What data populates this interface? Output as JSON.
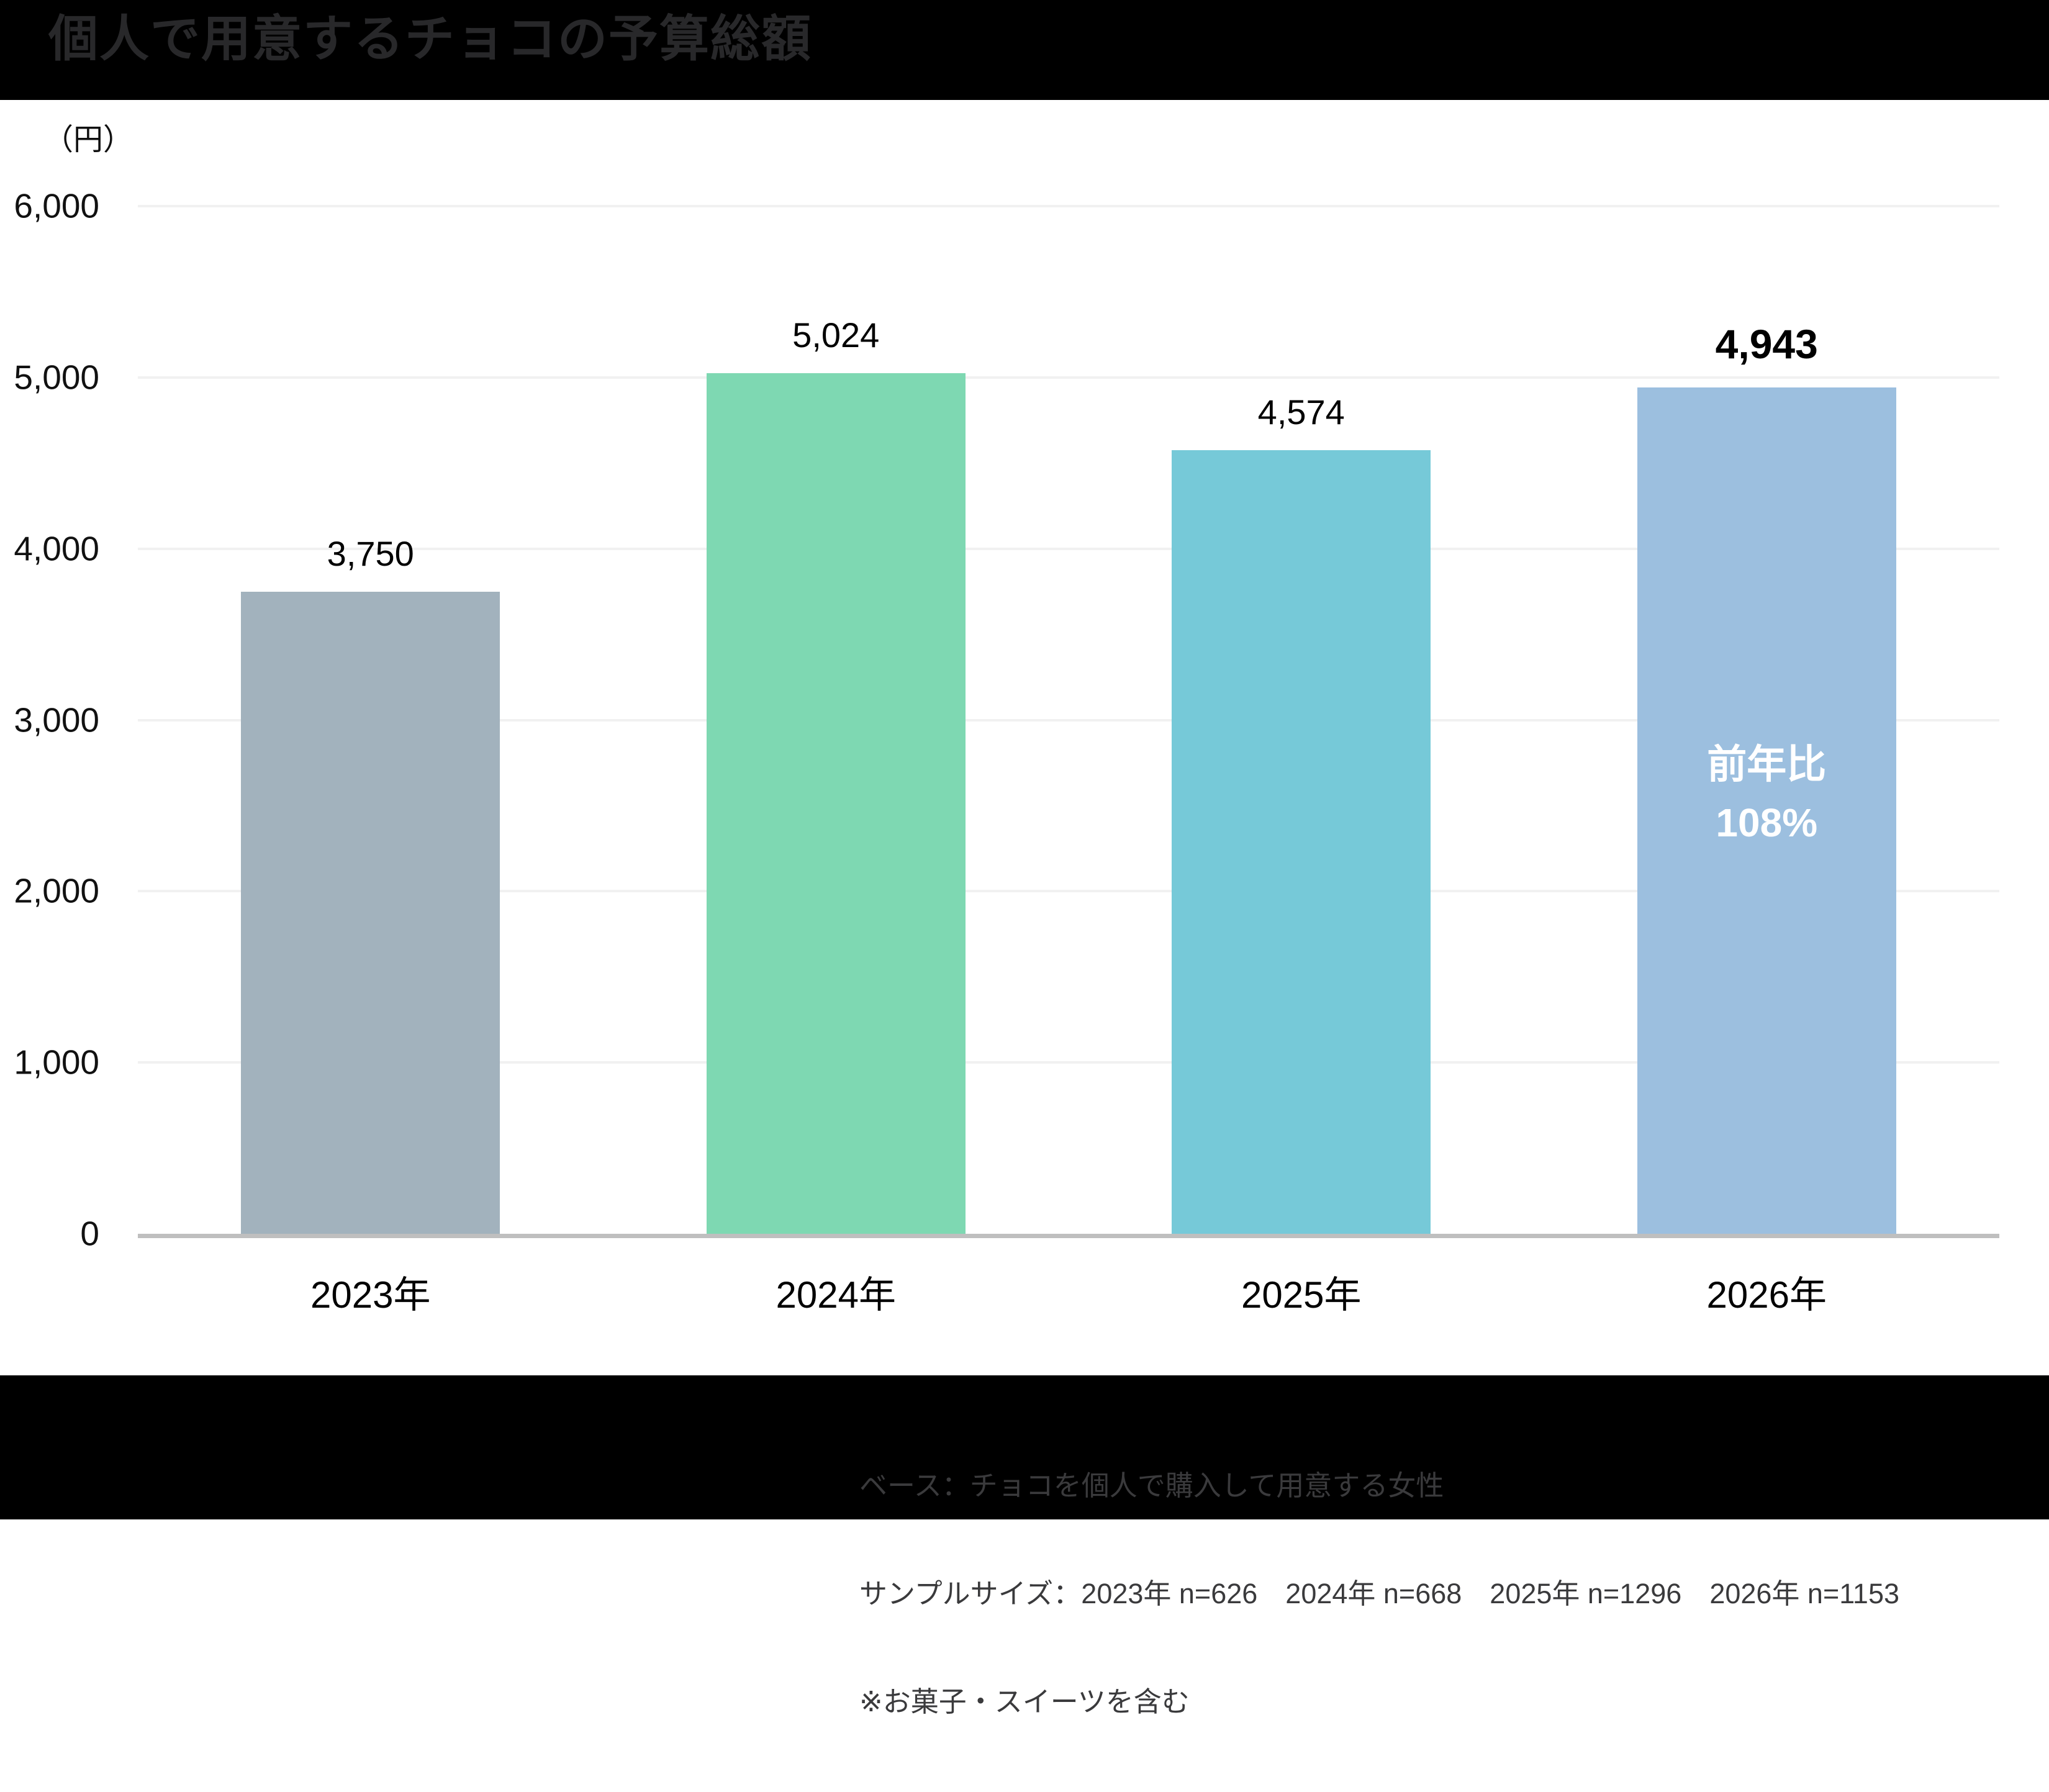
{
  "header": {
    "title": "個人で用意するチョコの予算総額"
  },
  "chart_data": {
    "type": "bar",
    "title": "個人で用意するチョコの予算総額",
    "unit_label": "（円）",
    "categories": [
      "2023年",
      "2024年",
      "2025年",
      "2026年"
    ],
    "values": [
      3750,
      5024,
      4574,
      4943
    ],
    "value_labels": [
      "3,750",
      "5,024",
      "4,574",
      "4,943"
    ],
    "bar_colors": [
      "#a2b2bd",
      "#7ed8b2",
      "#76c9d8",
      "#9cbfdf"
    ],
    "emphasized_index": 3,
    "annotation": {
      "bar_index": 3,
      "lines": [
        "前年比",
        "108%"
      ],
      "color": "#ffffff"
    },
    "xlabel": "",
    "ylabel": "（円）",
    "ylim": [
      0,
      6000
    ],
    "yticks": [
      0,
      1000,
      2000,
      3000,
      4000,
      5000,
      6000
    ],
    "ytick_labels": [
      "0",
      "1,000",
      "2,000",
      "3,000",
      "4,000",
      "5,000",
      "6,000"
    ],
    "grid": true,
    "legend": "none"
  },
  "footer": {
    "lines": [
      "ベース：チョコを個人で購入して用意する女性",
      "サンプルサイズ：2023年 n=626　2024年 n=668　2025年 n=1296　2026年 n=1153",
      "※お菓子・スイーツを含む"
    ]
  },
  "colors": {
    "header_bg": "#000000",
    "footer_bg": "#000000",
    "title_text": "#28282a",
    "footer_text": "#3a3a3c",
    "axis_line": "#bfbfbf",
    "gridline": "#f1f1f1",
    "value_text": "#000000"
  }
}
